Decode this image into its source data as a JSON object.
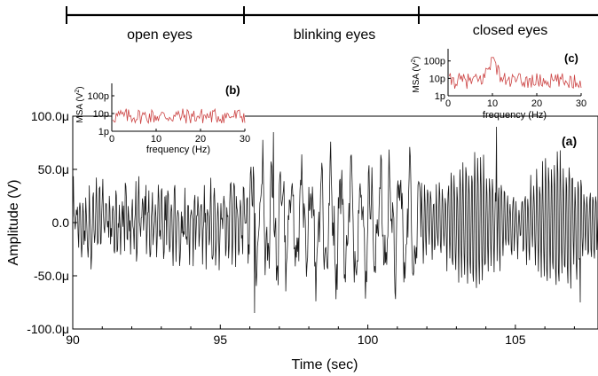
{
  "chart_data": [
    {
      "id": "a",
      "type": "line",
      "panel_label": "(a)",
      "xlabel": "Time (sec)",
      "ylabel": "Amplitude (V)",
      "xlim": [
        90,
        107.8
      ],
      "ylim": [
        -100,
        100
      ],
      "y_unit": "μV",
      "x_ticks": [
        "90",
        "95",
        "100",
        "105"
      ],
      "x_tick_values": [
        90,
        95,
        100,
        105
      ],
      "y_ticks": [
        "-100.0μ",
        "-50.0μ",
        "0.0",
        "50.0μ",
        "100.0μ"
      ],
      "y_tick_values": [
        -100,
        -50,
        0,
        50,
        100
      ],
      "line_color": "#1a1a1a",
      "grid": false,
      "segments": [
        {
          "label": "open eyes",
          "x_start": 90,
          "x_end": 95.95,
          "amplitude_uV": 45,
          "dominant_freq_hz": 9
        },
        {
          "label": "blinking eyes",
          "x_start": 95.95,
          "x_end": 101.8,
          "amplitude_uV": 75,
          "dominant_freq_hz": 3
        },
        {
          "label": "closed eyes",
          "x_start": 101.8,
          "x_end": 107.8,
          "amplitude_uV": 60,
          "dominant_freq_hz": 10
        }
      ],
      "notable_points": [
        {
          "x": 96.15,
          "y": -85
        },
        {
          "x": 96.8,
          "y": 85
        },
        {
          "x": 104.35,
          "y": 90
        },
        {
          "x": 107.2,
          "y": -75
        }
      ]
    },
    {
      "id": "b",
      "type": "line",
      "panel_label": "(b)",
      "xlabel": "frequency (Hz)",
      "ylabel": "MSA (V²)",
      "ylabel_text": "MSA (V",
      "ylabel_sup": "2",
      "ylabel_close": ")",
      "xlim": [
        0,
        30
      ],
      "ylim_log10": [
        -12,
        -9.3
      ],
      "x_ticks": [
        "0",
        "10",
        "20",
        "30"
      ],
      "x_tick_values": [
        0,
        10,
        20,
        30
      ],
      "y_ticks": [
        "1p",
        "10p",
        "100p"
      ],
      "y_tick_values_log10": [
        -12,
        -11,
        -10
      ],
      "line_color": "#cc4444",
      "peak": null
    },
    {
      "id": "c",
      "type": "line",
      "panel_label": "(c)",
      "xlabel": "frequency (Hz)",
      "ylabel": "MSA (V²)",
      "ylabel_text": "MSA (V",
      "ylabel_sup": "2",
      "ylabel_close": ")",
      "xlim": [
        0,
        30
      ],
      "ylim_log10": [
        -12,
        -9.3
      ],
      "x_ticks": [
        "0",
        "10",
        "20",
        "30"
      ],
      "x_tick_values": [
        0,
        10,
        20,
        30
      ],
      "y_ticks": [
        "1p",
        "10p",
        "100p"
      ],
      "y_tick_values_log10": [
        -12,
        -11,
        -10
      ],
      "line_color": "#cc4444",
      "peak": {
        "x": 10,
        "y_log10": -9.8
      }
    }
  ],
  "phase_bar": {
    "labels": [
      "open eyes",
      "blinking eyes",
      "closed eyes"
    ],
    "boundaries": [
      90,
      95.95,
      101.8,
      107.8
    ]
  }
}
